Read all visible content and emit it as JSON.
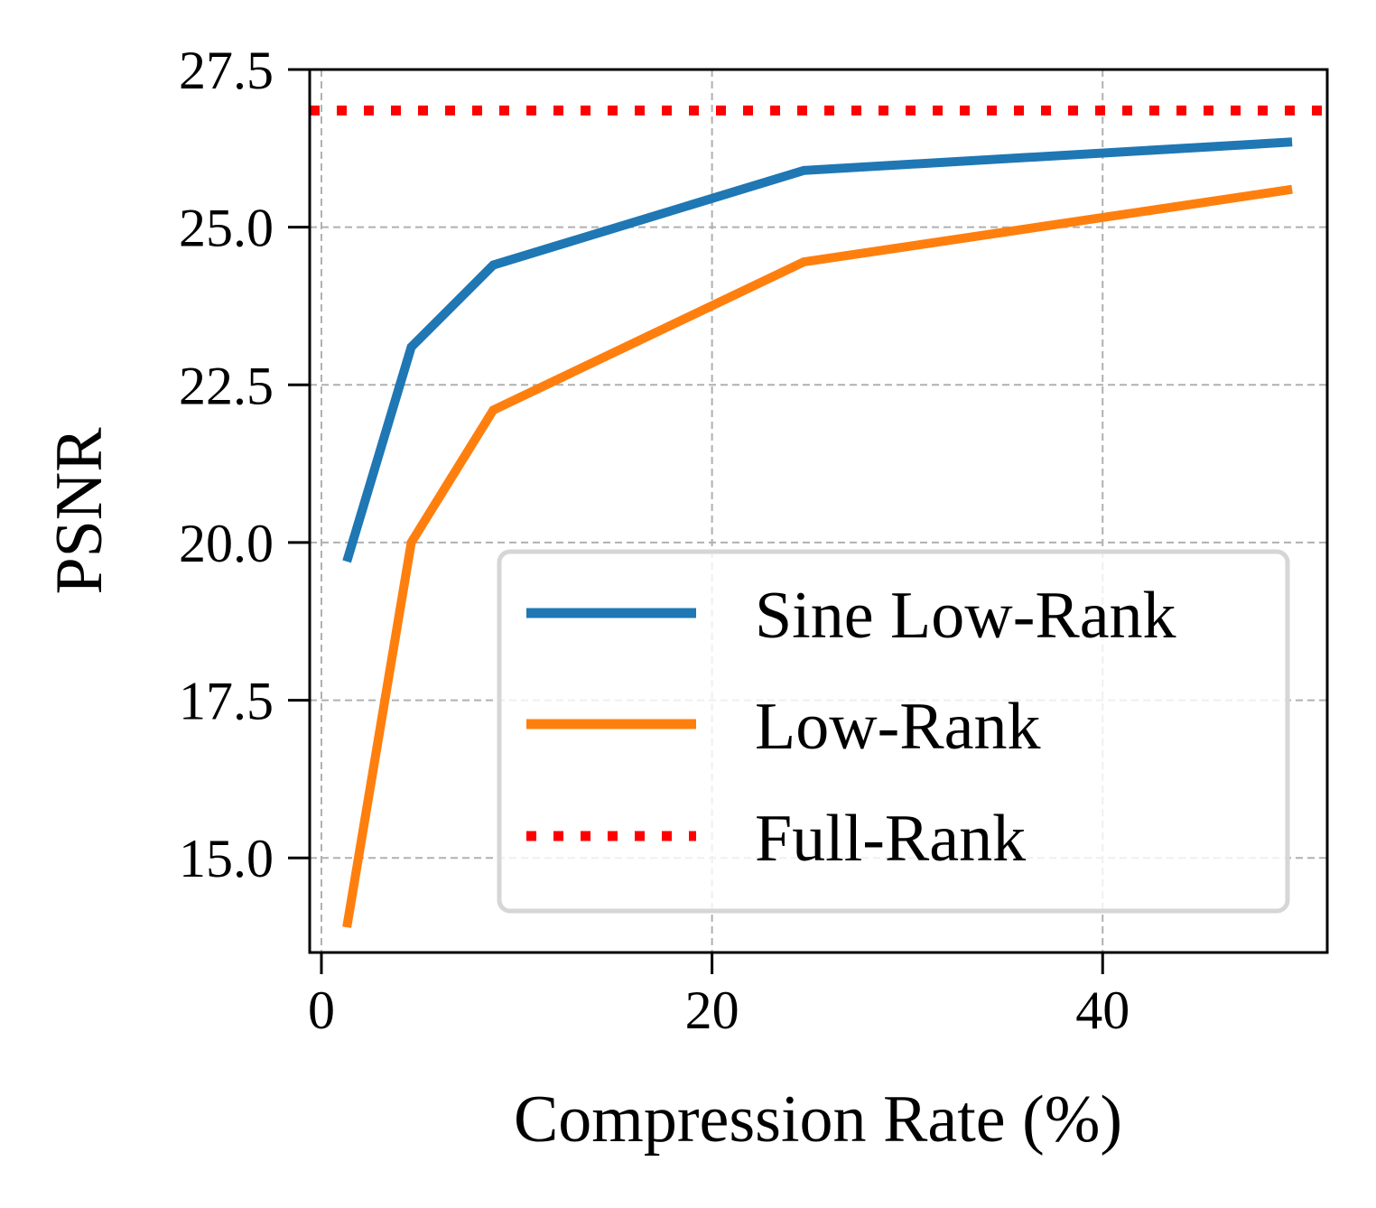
{
  "chart_data": {
    "type": "line",
    "title": "",
    "xlabel": "Compression Rate (%)",
    "ylabel": "PSNR",
    "xlim": [
      -0.6,
      51.5
    ],
    "ylim": [
      13.5,
      27.5
    ],
    "xticks": [
      0,
      20,
      40
    ],
    "xtick_labels": [
      "0",
      "20",
      "40"
    ],
    "yticks": [
      15.0,
      17.5,
      20.0,
      22.5,
      25.0,
      27.5
    ],
    "ytick_labels": [
      "15.0",
      "17.5",
      "20.0",
      "22.5",
      "25.0",
      "27.5"
    ],
    "grid": true,
    "legend_position": "lower-right",
    "series": [
      {
        "name": "Sine Low-Rank",
        "color": "#1f77b4",
        "style": "solid",
        "x": [
          1.3,
          4.6,
          8.8,
          24.7,
          49.7
        ],
        "y": [
          19.7,
          23.1,
          24.4,
          25.9,
          26.35
        ]
      },
      {
        "name": "Low-Rank",
        "color": "#ff7f0e",
        "style": "solid",
        "x": [
          1.3,
          4.6,
          8.8,
          24.7,
          49.7
        ],
        "y": [
          13.9,
          20.0,
          22.1,
          24.45,
          25.6
        ]
      },
      {
        "name": "Full-Rank",
        "color": "#ff0000",
        "style": "dotted",
        "y_constant": 26.85
      }
    ]
  }
}
